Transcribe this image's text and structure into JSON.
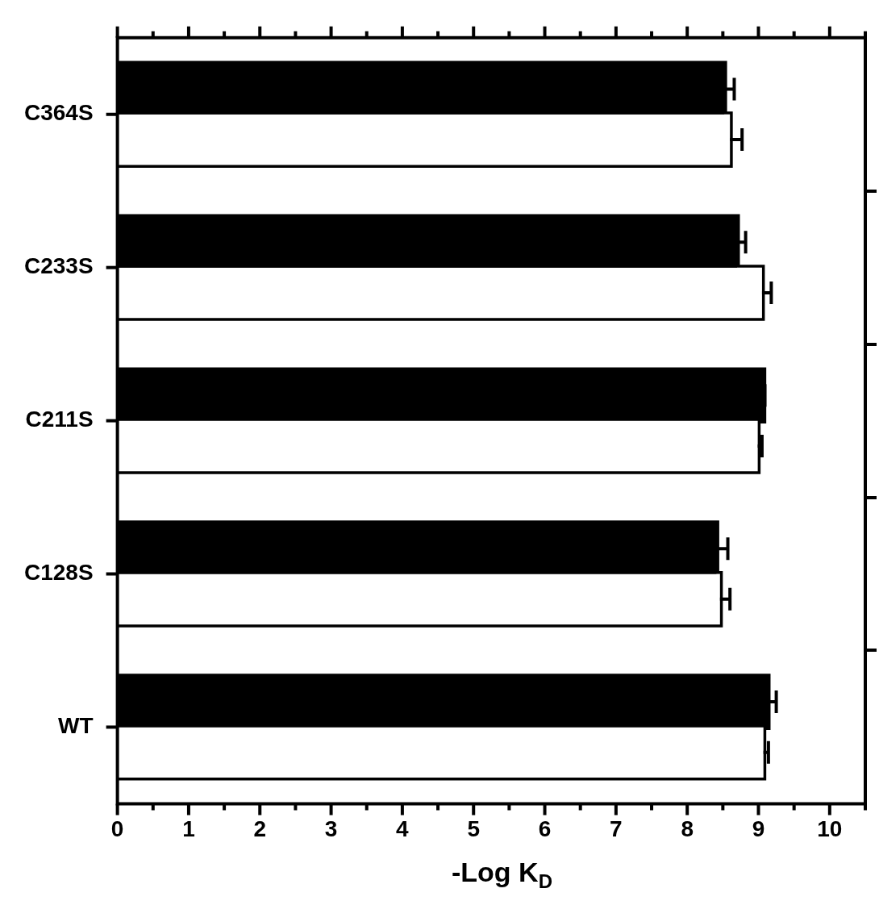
{
  "chart_data": {
    "type": "bar",
    "orientation": "horizontal",
    "xlabel": "-Log K$_{D}$",
    "categories": [
      "C364S",
      "C233S",
      "C211S",
      "C128S",
      "WT"
    ],
    "series": [
      {
        "color": "#000000",
        "values": [
          8.52,
          8.7,
          9.07,
          8.41,
          9.13
        ],
        "errors": [
          [
            8.52,
            8.66
          ],
          [
            8.7,
            8.82
          ],
          [
            9.07,
            9.09
          ],
          [
            8.41,
            8.57
          ],
          [
            9.13,
            9.25
          ]
        ]
      },
      {
        "color": "#ffffff",
        "values": [
          8.6,
          9.05,
          8.99,
          8.46,
          9.07
        ],
        "errors": [
          [
            8.6,
            8.77
          ],
          [
            9.05,
            9.18
          ],
          [
            8.99,
            9.05
          ],
          [
            8.46,
            8.6
          ],
          [
            9.07,
            9.14
          ]
        ]
      }
    ],
    "xlim": [
      0,
      10.5
    ],
    "xticks": [
      0,
      {
        "value": 0.5,
        "label": null
      },
      1,
      {
        "value": 1.5,
        "label": null
      },
      2,
      {
        "value": 2.5,
        "label": null
      },
      3,
      {
        "value": 3.5,
        "label": null
      },
      4,
      {
        "value": 4.5,
        "label": null
      },
      5,
      {
        "value": 5.5,
        "label": null
      },
      6,
      {
        "value": 6.5,
        "label": null
      },
      7,
      {
        "value": 7.5,
        "label": null
      },
      8,
      {
        "value": 8.5,
        "label": null
      },
      9,
      {
        "value": 9.5,
        "label": null
      },
      10,
      {
        "value": 10.5,
        "label": null
      }
    ],
    "grid": false,
    "legend": false
  }
}
